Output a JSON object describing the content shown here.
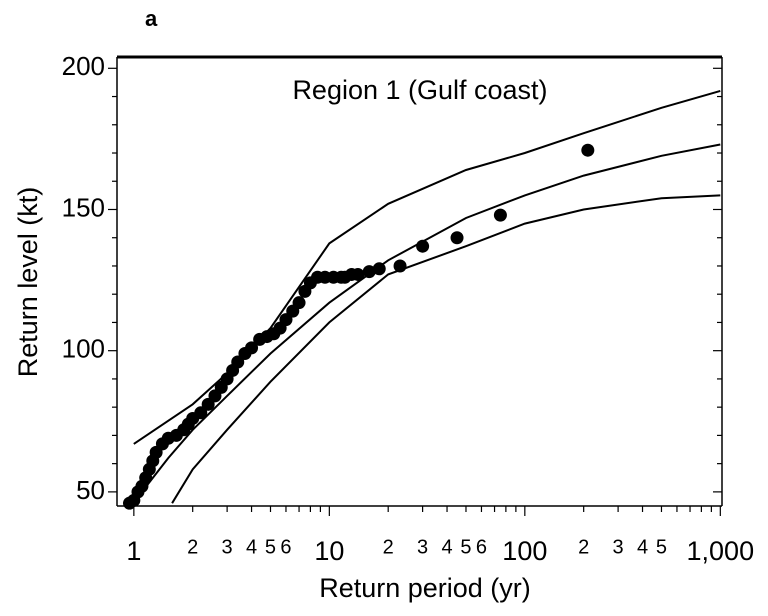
{
  "chart_data": {
    "type": "scatter",
    "panel_label": "a",
    "title": "Region 1 (Gulf coast)",
    "x_label": "Return period (yr)",
    "y_label": "Return level (kt)",
    "log_x": true,
    "color": "#000000",
    "xlim": [
      0.82,
      1020
    ],
    "ylim": [
      45,
      204
    ],
    "xticks": [
      1,
      2,
      3,
      4,
      5,
      6,
      10,
      {
        "value": 20,
        "label": "2"
      },
      {
        "value": 30,
        "label": "3"
      },
      {
        "value": 40,
        "label": "4"
      },
      {
        "value": 50,
        "label": "5"
      },
      {
        "value": 60,
        "label": "6"
      },
      100,
      {
        "value": 200,
        "label": "2"
      },
      {
        "value": 300,
        "label": "3"
      },
      {
        "value": 400,
        "label": "4"
      },
      {
        "value": 500,
        "label": "5"
      },
      {
        "value": 1000,
        "label": "1,000"
      }
    ],
    "xminorticks": [
      7,
      8,
      9,
      70,
      80,
      90,
      600,
      700,
      800,
      900
    ],
    "yticks": [
      50,
      100,
      150,
      200
    ],
    "yminorticks": [
      60,
      70,
      80,
      90,
      110,
      120,
      130,
      140,
      160,
      170,
      180,
      190
    ],
    "points": {
      "x": [
        0.95,
        1.0,
        1.05,
        1.1,
        1.15,
        1.2,
        1.25,
        1.3,
        1.4,
        1.5,
        1.65,
        1.8,
        1.9,
        2.0,
        2.2,
        2.4,
        2.6,
        2.8,
        3.0,
        3.2,
        3.4,
        3.7,
        4.0,
        4.4,
        4.8,
        5.2,
        5.6,
        6.0,
        6.5,
        7.0,
        7.5,
        8.0,
        8.7,
        9.5,
        10.5,
        11.5,
        12,
        13,
        14,
        16,
        18,
        23,
        30,
        45,
        75,
        210
      ],
      "y": [
        46,
        47,
        50,
        52,
        55,
        58,
        61,
        64,
        67,
        69,
        70,
        72,
        74,
        76,
        78,
        81,
        84,
        87,
        90,
        93,
        96,
        99,
        101,
        104,
        105,
        106,
        108,
        111,
        114,
        117,
        121,
        124,
        126,
        126,
        126,
        126,
        126,
        127,
        127,
        128,
        129,
        130,
        137,
        140,
        148,
        171
      ]
    },
    "curves": [
      {
        "x": [
          1.0,
          2,
          3,
          5,
          10,
          20,
          50,
          100,
          200,
          500,
          1000
        ],
        "y": [
          67,
          81,
          92,
          108,
          138,
          152,
          164,
          170,
          177,
          186,
          192
        ]
      },
      {
        "x": [
          1.1,
          1.5,
          2,
          3,
          5,
          10,
          20,
          50,
          100,
          200,
          500,
          1000
        ],
        "y": [
          50,
          62,
          72,
          84,
          99,
          117,
          132,
          147,
          155,
          162,
          169,
          173
        ]
      },
      {
        "x": [
          1.57,
          2,
          3,
          5,
          10,
          20,
          50,
          100,
          200,
          500,
          1000
        ],
        "y": [
          46,
          58,
          72,
          89,
          110,
          127,
          137,
          145,
          150,
          154,
          155
        ]
      }
    ]
  }
}
